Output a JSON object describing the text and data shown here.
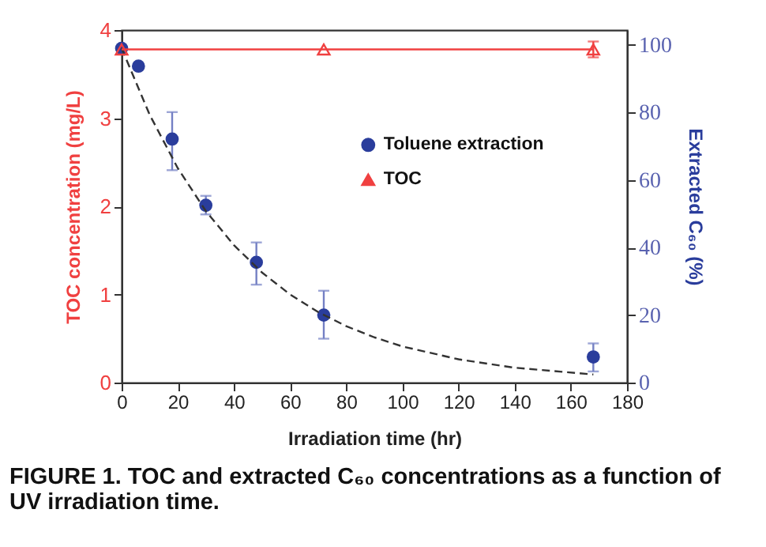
{
  "chart_data": {
    "type": "scatter",
    "xlabel": "Irradiation time (hr)",
    "ylabel": "TOC concentration (mg/L)",
    "y2label": "Extracted C₆₀ (%)",
    "xlim": [
      0,
      180
    ],
    "xticks": [
      0,
      20,
      40,
      60,
      80,
      100,
      120,
      140,
      160,
      180
    ],
    "ylim": [
      0,
      4
    ],
    "yticks": [
      0,
      1,
      2,
      3,
      4
    ],
    "y2lim": [
      0,
      104.4
    ],
    "y2ticks": [
      0,
      20,
      40,
      60,
      80,
      100
    ],
    "legend": "right",
    "series": [
      {
        "name": "Toluene extraction",
        "axis": "y2",
        "color": "#2a3d9c",
        "marker": "circle",
        "x": [
          0,
          6,
          18,
          30,
          48,
          72,
          168
        ],
        "values": [
          99,
          93.7,
          72.1,
          52.5,
          35.6,
          20,
          7.6
        ],
        "errors": [
          null,
          null,
          [
            62.9,
            80.1
          ],
          [
            49.8,
            55.3
          ],
          [
            29,
            41.5
          ],
          [
            13,
            27.2
          ],
          [
            3.3,
            11.6
          ]
        ]
      },
      {
        "name": "TOC",
        "type": "line",
        "color": "#f04040",
        "marker": "triangle",
        "x": [
          0,
          72,
          168
        ],
        "values": [
          3.78,
          3.78,
          3.78
        ],
        "errors": [
          null,
          null,
          0.09
        ]
      },
      {
        "type": "line",
        "axis": "y2",
        "color": "#333333",
        "line_style": "dashed",
        "marker": "none",
        "x": [
          0,
          10,
          20,
          30,
          40,
          50,
          60,
          70,
          80,
          90,
          100,
          120,
          140,
          168
        ],
        "values": [
          99,
          79.3,
          63.5,
          50.8,
          40.7,
          32.6,
          26.1,
          20.9,
          16.7,
          13.4,
          10.7,
          6.9,
          4.4,
          2.4
        ]
      }
    ],
    "annotations": [
      "FIGURE 1. TOC and extracted C₆₀ concentrations as a function of UV irradiation time."
    ]
  }
}
